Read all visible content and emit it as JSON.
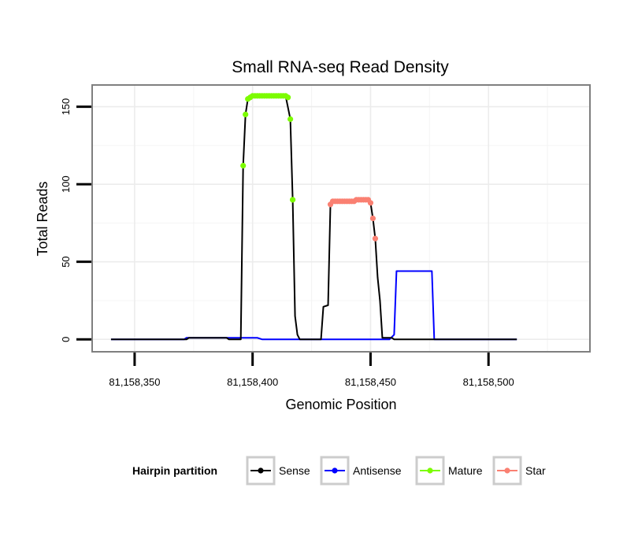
{
  "chart_data": {
    "type": "line",
    "title": "Small RNA-seq Read Density",
    "xlabel": "Genomic Position",
    "ylabel": "Total Reads",
    "xlim": [
      81158332,
      81158543
    ],
    "ylim": [
      -8,
      164
    ],
    "x_ticks": [
      81158350,
      81158400,
      81158450,
      81158500
    ],
    "x_tick_labels": [
      "81,158,350",
      "81,158,400",
      "81,158,450",
      "81,158,500"
    ],
    "y_ticks": [
      0,
      50,
      100,
      150
    ],
    "y_tick_labels": [
      "0",
      "50",
      "100",
      "150"
    ],
    "grid": true,
    "legend": {
      "title": "Hairpin partition",
      "position": "bottom",
      "entries": [
        {
          "name": "Sense",
          "color": "#000000"
        },
        {
          "name": "Antisense",
          "color": "#0000ff"
        },
        {
          "name": "Mature",
          "color": "#7cfc00"
        },
        {
          "name": "Star",
          "color": "#fa8072"
        }
      ]
    },
    "series": [
      {
        "name": "Sense",
        "color": "#000000",
        "points": [
          [
            81158340,
            0
          ],
          [
            81158372,
            0
          ],
          [
            81158373,
            1
          ],
          [
            81158389,
            1
          ],
          [
            81158390,
            0
          ],
          [
            81158395,
            0
          ],
          [
            81158396,
            112
          ],
          [
            81158397,
            145
          ],
          [
            81158398,
            155
          ],
          [
            81158400,
            157
          ],
          [
            81158414,
            157
          ],
          [
            81158416,
            142
          ],
          [
            81158417,
            90
          ],
          [
            81158418,
            15
          ],
          [
            81158419,
            3
          ],
          [
            81158420,
            0
          ],
          [
            81158429,
            0
          ],
          [
            81158430,
            21
          ],
          [
            81158432,
            22
          ],
          [
            81158433,
            87
          ],
          [
            81158434,
            89
          ],
          [
            81158448,
            90
          ],
          [
            81158450,
            88
          ],
          [
            81158451,
            78
          ],
          [
            81158452,
            65
          ],
          [
            81158453,
            40
          ],
          [
            81158454,
            25
          ],
          [
            81158455,
            1
          ],
          [
            81158459,
            1
          ],
          [
            81158460,
            0
          ],
          [
            81158512,
            0
          ]
        ]
      },
      {
        "name": "Antisense",
        "color": "#0000ff",
        "points": [
          [
            81158340,
            0
          ],
          [
            81158371,
            0
          ],
          [
            81158372,
            1
          ],
          [
            81158390,
            1
          ],
          [
            81158392,
            1
          ],
          [
            81158402,
            1
          ],
          [
            81158404,
            0
          ],
          [
            81158458,
            0
          ],
          [
            81158460,
            3
          ],
          [
            81158461,
            44
          ],
          [
            81158476,
            44
          ],
          [
            81158477,
            0
          ],
          [
            81158512,
            0
          ]
        ]
      },
      {
        "name": "Mature",
        "color": "#7cfc00",
        "points": [
          [
            81158396,
            112
          ],
          [
            81158397,
            145
          ],
          [
            81158398,
            155
          ],
          [
            81158399,
            156
          ],
          [
            81158400,
            157
          ],
          [
            81158401,
            157
          ],
          [
            81158402,
            157
          ],
          [
            81158403,
            157
          ],
          [
            81158404,
            157
          ],
          [
            81158405,
            157
          ],
          [
            81158406,
            157
          ],
          [
            81158407,
            157
          ],
          [
            81158408,
            157
          ],
          [
            81158409,
            157
          ],
          [
            81158410,
            157
          ],
          [
            81158411,
            157
          ],
          [
            81158412,
            157
          ],
          [
            81158413,
            157
          ],
          [
            81158414,
            157
          ],
          [
            81158415,
            156
          ],
          [
            81158416,
            142
          ],
          [
            81158417,
            90
          ]
        ]
      },
      {
        "name": "Star",
        "color": "#fa8072",
        "points": [
          [
            81158433,
            87
          ],
          [
            81158434,
            89
          ],
          [
            81158435,
            89
          ],
          [
            81158436,
            89
          ],
          [
            81158437,
            89
          ],
          [
            81158438,
            89
          ],
          [
            81158439,
            89
          ],
          [
            81158440,
            89
          ],
          [
            81158441,
            89
          ],
          [
            81158442,
            89
          ],
          [
            81158443,
            89
          ],
          [
            81158444,
            90
          ],
          [
            81158445,
            90
          ],
          [
            81158446,
            90
          ],
          [
            81158447,
            90
          ],
          [
            81158448,
            90
          ],
          [
            81158449,
            90
          ],
          [
            81158450,
            88
          ],
          [
            81158451,
            78
          ],
          [
            81158452,
            65
          ]
        ]
      }
    ]
  }
}
